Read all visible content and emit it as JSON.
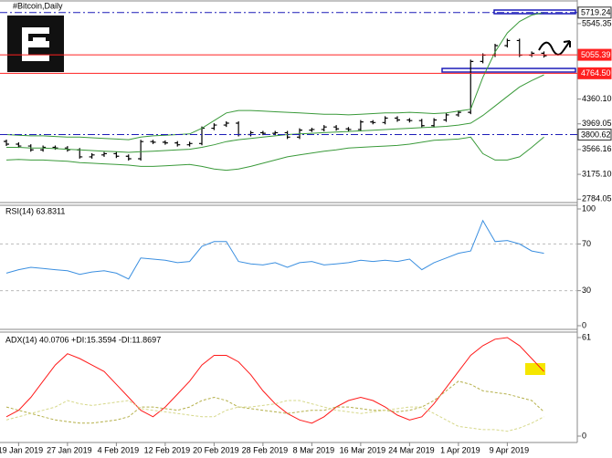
{
  "chart_data": [
    {
      "type": "stock",
      "title": "#Bitcoin,Daily",
      "categories": [
        null,
        "19 Jan 2019",
        null,
        null,
        null,
        "27 Jan 2019",
        null,
        null,
        null,
        "4 Feb 2019",
        null,
        null,
        null,
        "12 Feb 2019",
        null,
        null,
        null,
        "20 Feb 2019",
        null,
        null,
        null,
        "28 Feb 2019",
        null,
        null,
        null,
        "8 Mar 2019",
        null,
        null,
        null,
        "16 Mar 2019",
        null,
        null,
        null,
        "24 Mar 2019",
        null,
        null,
        null,
        "1 Apr 2019",
        null,
        null,
        null,
        "9 Apr 2019",
        null,
        null,
        null
      ],
      "ylim": [
        2760,
        5860
      ],
      "yticks": [
        2784.05,
        {
          "value": 3175.1,
          "label": "3175.10"
        },
        3566.16,
        3969.05,
        {
          "value": 4360.1,
          "label": "4360.10"
        },
        5545.35
      ],
      "grid": false,
      "series": [
        {
          "style": "bars",
          "color": "#000000",
          "values": [
            3650,
            3620,
            3560,
            3600,
            3590,
            3560,
            3450,
            3480,
            3500,
            3460,
            3420,
            3690,
            3680,
            3670,
            3640,
            3660,
            3900,
            3950,
            3980,
            3800,
            3830,
            3820,
            3830,
            3760,
            3870,
            3880,
            3920,
            3890,
            3880,
            4000,
            3990,
            4060,
            4030,
            4020,
            3940,
            4030,
            4110,
            4150,
            4950,
            5050,
            5200,
            5280,
            5050,
            5080,
            5040
          ]
        },
        {
          "style": "line",
          "color": "#3a9a3a",
          "values": [
            3800,
            3790,
            3780,
            3780,
            3770,
            3760,
            3760,
            3750,
            3740,
            3730,
            3720,
            3760,
            3780,
            3790,
            3800,
            3810,
            3900,
            4020,
            4140,
            4180,
            4180,
            4170,
            4160,
            4150,
            4140,
            4130,
            4120,
            4120,
            4110,
            4120,
            4130,
            4140,
            4140,
            4150,
            4140,
            4130,
            4140,
            4170,
            4200,
            4700,
            5100,
            5400,
            5580,
            5680,
            5720
          ]
        },
        {
          "style": "line",
          "color": "#3a9a3a",
          "values": [
            3600,
            3600,
            3590,
            3590,
            3580,
            3570,
            3560,
            3550,
            3540,
            3530,
            3520,
            3530,
            3540,
            3550,
            3560,
            3570,
            3600,
            3640,
            3690,
            3720,
            3740,
            3760,
            3780,
            3800,
            3810,
            3820,
            3830,
            3840,
            3850,
            3860,
            3870,
            3880,
            3890,
            3900,
            3910,
            3920,
            3930,
            3950,
            3980,
            4100,
            4250,
            4400,
            4550,
            4650,
            4740
          ]
        },
        {
          "style": "line",
          "color": "#3a9a3a",
          "values": [
            3400,
            3410,
            3400,
            3400,
            3390,
            3380,
            3360,
            3350,
            3340,
            3330,
            3320,
            3300,
            3300,
            3310,
            3320,
            3330,
            3300,
            3260,
            3240,
            3260,
            3300,
            3350,
            3400,
            3450,
            3480,
            3510,
            3540,
            3560,
            3590,
            3600,
            3610,
            3620,
            3630,
            3650,
            3680,
            3710,
            3720,
            3730,
            3760,
            3500,
            3400,
            3400,
            3450,
            3600,
            3760
          ]
        }
      ],
      "levels": [
        {
          "value": 5719.24,
          "color": "#1c1cb8",
          "style": "dashdot"
        },
        {
          "value": 5055.39,
          "color": "#ff2020",
          "style": "solid"
        },
        {
          "value": 4764.5,
          "label": "4764.50",
          "color": "#ff2020",
          "style": "solid"
        },
        {
          "value": 3800.62,
          "color": "#1c1cb8",
          "style": "dashdot"
        }
      ]
    },
    {
      "type": "line",
      "title": "RSI(14) 63.8311",
      "ylim": [
        0,
        100
      ],
      "yticks": [
        0,
        30,
        70,
        100
      ],
      "grid": true,
      "series": [
        {
          "color": "#3b8fe0",
          "values": [
            45,
            48,
            50,
            49,
            48,
            47,
            44,
            46,
            47,
            45,
            40,
            58,
            57,
            56,
            54,
            55,
            68,
            72,
            72,
            55,
            53,
            52,
            54,
            50,
            54,
            55,
            52,
            53,
            54,
            56,
            55,
            56,
            55,
            57,
            48,
            54,
            58,
            62,
            64,
            90,
            72,
            73,
            70,
            64,
            62
          ]
        }
      ]
    },
    {
      "type": "line",
      "title": "ADX(14) 40.0706 +DI:15.3594 -DI:11.8697",
      "ylim": [
        0,
        61
      ],
      "yticks": [
        0,
        61
      ],
      "grid": false,
      "series": [
        {
          "color": "#ff1a1a",
          "values": [
            12,
            16,
            24,
            34,
            44,
            51,
            48,
            44,
            40,
            32,
            24,
            16,
            12,
            18,
            26,
            34,
            44,
            50,
            50,
            46,
            38,
            28,
            20,
            14,
            10,
            8,
            12,
            18,
            22,
            24,
            22,
            18,
            13,
            10,
            12,
            20,
            30,
            40,
            50,
            56,
            60,
            61,
            56,
            48,
            40
          ]
        },
        {
          "color": "#b5b04a",
          "dash": true,
          "values": [
            18,
            16,
            14,
            12,
            10,
            9,
            8,
            8,
            9,
            10,
            12,
            18,
            18,
            17,
            16,
            18,
            22,
            24,
            22,
            18,
            17,
            16,
            15,
            14,
            15,
            16,
            16,
            18,
            18,
            17,
            16,
            16,
            15,
            16,
            18,
            22,
            28,
            34,
            32,
            28,
            27,
            26,
            24,
            22,
            15
          ]
        },
        {
          "color": "#d6d88a",
          "dash": true,
          "values": [
            10,
            12,
            14,
            16,
            18,
            22,
            20,
            19,
            20,
            21,
            22,
            17,
            16,
            15,
            14,
            13,
            12,
            12,
            16,
            18,
            18,
            19,
            20,
            22,
            22,
            20,
            18,
            16,
            15,
            14,
            15,
            16,
            17,
            18,
            18,
            14,
            10,
            6,
            5,
            4,
            4,
            3,
            5,
            8,
            12
          ]
        }
      ]
    }
  ]
}
